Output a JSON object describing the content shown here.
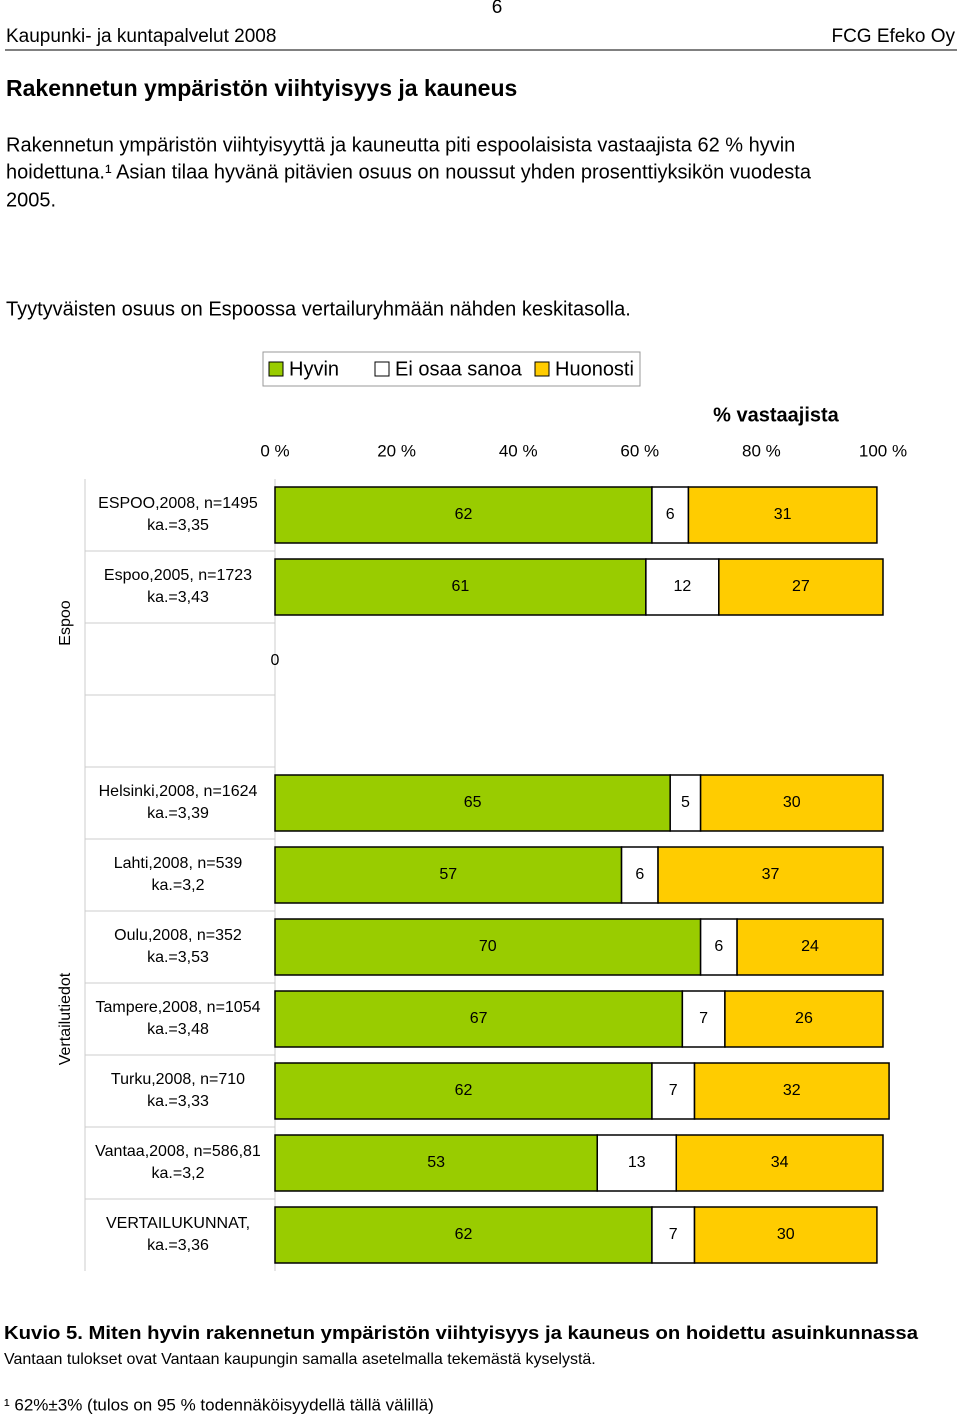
{
  "header": {
    "left": "Kaupunki- ja kuntapalvelut 2008",
    "page": "6",
    "right": "FCG Efeko Oy"
  },
  "heading": "Rakennetun ympäristön viihtyisyys ja kauneus",
  "paragraph1": [
    "Rakennetun ympäristön viihtyisyyttä ja kauneutta piti espoolaisista vastaajista 62 % hyvin",
    "hoidettuna.¹ Asian tilaa hyvänä pitävien osuus on noussut yhden prosenttiyksikön vuodesta",
    "2005."
  ],
  "paragraph2": "Tyytyväisten osuus on Espoossa vertailuryhmään nähden keskitasolla.",
  "chart_data": {
    "type": "stacked-horizontal-bar",
    "xlabel": "% vastaajista",
    "xlim": [
      0,
      100
    ],
    "xticks": [
      {
        "value": 0,
        "label": "0 %"
      },
      {
        "value": 20,
        "label": "20 %"
      },
      {
        "value": 40,
        "label": "40 %"
      },
      {
        "value": 60,
        "label": "60 %"
      },
      {
        "value": 80,
        "label": "80 %"
      },
      {
        "value": 100,
        "label": "100 %"
      }
    ],
    "categories": [
      "ESPOO,2008, n=1495",
      "Espoo,2005, n=1723",
      null,
      null,
      "Helsinki,2008, n=1624",
      "Lahti,2008, n=539",
      "Oulu,2008, n=352",
      "Tampere,2008, n=1054",
      "Turku,2008, n=710",
      "Vantaa,2008, n=586,81",
      "VERTAILUKUNNAT,"
    ],
    "category_means": [
      "ka.=3,35",
      "ka.=3,43",
      null,
      null,
      "ka.=3,39",
      "ka.=3,2",
      "ka.=3,53",
      "ka.=3,48",
      "ka.=3,33",
      "ka.=3,2",
      "ka.=3,36"
    ],
    "groups": [
      {
        "name": "Espoo",
        "rows": [
          0,
          3
        ]
      },
      {
        "name": "Vertailutiedot",
        "rows": [
          4,
          10
        ]
      }
    ],
    "series": [
      {
        "name": "Hyvin",
        "color": "#99cc00",
        "values": [
          62,
          61,
          0,
          null,
          65,
          57,
          70,
          67,
          62,
          53,
          62
        ]
      },
      {
        "name": "Ei osaa sanoa",
        "color": "#ffffff",
        "values": [
          6,
          12,
          null,
          null,
          5,
          6,
          6,
          7,
          7,
          13,
          7
        ]
      },
      {
        "name": "Huonosti",
        "color": "#ffcc00",
        "values": [
          31,
          27,
          null,
          null,
          30,
          37,
          24,
          26,
          32,
          34,
          30
        ]
      }
    ]
  },
  "caption": "Kuvio 5. Miten hyvin rakennetun ympäristön viihtyisyys ja kauneus on hoidettu asuinkunnassa",
  "note": "Vantaan tulokset ovat Vantaan kaupungin samalla asetelmalla tekemästä kyselystä.",
  "footnote": "¹ 62%±3% (tulos on 95 % todennäköisyydellä tällä välillä)"
}
